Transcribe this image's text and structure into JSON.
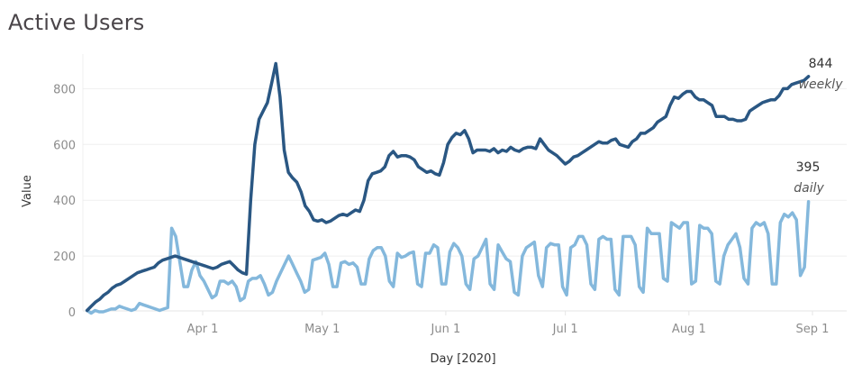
{
  "title": "Active Users",
  "colors": {
    "weekly": "#2a5783",
    "daily": "#84b8dc",
    "grid": "#efefef",
    "axis": "#e0e0e0"
  },
  "chart_data": {
    "type": "line",
    "title": "Active Users",
    "xlabel": "Day [2020]",
    "ylabel": "Value",
    "ylim": [
      0,
      900
    ],
    "yticks": [
      0,
      200,
      400,
      600,
      800
    ],
    "xticks": [
      "Apr 1",
      "May 1",
      "Jun 1",
      "Jul 1",
      "Aug 1",
      "Sep 1"
    ],
    "grid": true,
    "legend": "inline end labels",
    "annotations": [
      {
        "series": "weekly",
        "value": "844",
        "label": "weekly"
      },
      {
        "series": "daily",
        "value": "395",
        "label": "daily"
      }
    ],
    "series": [
      {
        "name": "weekly",
        "x_start": "2020-03-03",
        "values": [
          5,
          20,
          35,
          45,
          60,
          70,
          85,
          95,
          100,
          110,
          120,
          130,
          140,
          145,
          150,
          155,
          160,
          175,
          185,
          190,
          195,
          200,
          195,
          190,
          185,
          180,
          175,
          170,
          165,
          160,
          155,
          160,
          170,
          175,
          180,
          165,
          150,
          140,
          135,
          400,
          600,
          690,
          720,
          750,
          820,
          890,
          770,
          580,
          500,
          480,
          465,
          430,
          380,
          360,
          330,
          325,
          330,
          320,
          325,
          335,
          345,
          350,
          345,
          355,
          365,
          360,
          400,
          470,
          495,
          500,
          505,
          520,
          560,
          575,
          555,
          560,
          560,
          555,
          545,
          520,
          510,
          500,
          505,
          495,
          490,
          535,
          600,
          625,
          640,
          635,
          650,
          620,
          570,
          580,
          580,
          580,
          575,
          585,
          570,
          580,
          575,
          590,
          580,
          575,
          585,
          590,
          590,
          585,
          620,
          600,
          580,
          570,
          560,
          545,
          530,
          540,
          555,
          560,
          570,
          580,
          590,
          600,
          610,
          605,
          605,
          615,
          620,
          600,
          595,
          590,
          610,
          620,
          640,
          640,
          650,
          660,
          680,
          690,
          700,
          740,
          770,
          765,
          780,
          790,
          790,
          770,
          760,
          760,
          750,
          740,
          700,
          700,
          700,
          690,
          690,
          685,
          685,
          690,
          720,
          730,
          740,
          750,
          755,
          760,
          760,
          775,
          800,
          800,
          815,
          820,
          825,
          830,
          844
        ]
      },
      {
        "name": "daily",
        "x_start": "2020-03-03",
        "values": [
          5,
          -5,
          5,
          0,
          0,
          5,
          10,
          10,
          20,
          15,
          10,
          5,
          10,
          30,
          25,
          20,
          15,
          10,
          5,
          10,
          15,
          300,
          270,
          180,
          90,
          90,
          150,
          180,
          130,
          110,
          80,
          50,
          60,
          110,
          110,
          100,
          110,
          90,
          40,
          50,
          110,
          120,
          120,
          130,
          100,
          60,
          70,
          110,
          140,
          170,
          200,
          170,
          140,
          110,
          70,
          80,
          185,
          190,
          195,
          210,
          170,
          90,
          90,
          175,
          180,
          170,
          175,
          160,
          100,
          100,
          190,
          220,
          230,
          230,
          200,
          110,
          90,
          210,
          195,
          200,
          210,
          215,
          100,
          90,
          210,
          210,
          240,
          230,
          100,
          100,
          215,
          245,
          230,
          200,
          100,
          80,
          190,
          200,
          230,
          260,
          100,
          80,
          240,
          215,
          190,
          180,
          70,
          60,
          200,
          230,
          240,
          250,
          130,
          90,
          230,
          245,
          240,
          240,
          90,
          60,
          230,
          240,
          270,
          270,
          240,
          100,
          80,
          260,
          270,
          260,
          260,
          80,
          60,
          270,
          270,
          270,
          240,
          90,
          70,
          300,
          280,
          280,
          280,
          120,
          110,
          320,
          310,
          300,
          320,
          320,
          100,
          110,
          310,
          300,
          300,
          280,
          110,
          100,
          200,
          240,
          260,
          280,
          230,
          120,
          100,
          300,
          320,
          310,
          320,
          280,
          100,
          100,
          320,
          350,
          340,
          355,
          330,
          130,
          160,
          395
        ]
      }
    ]
  },
  "axes": {
    "y_title": "Value",
    "x_title": "Day [2020]"
  }
}
